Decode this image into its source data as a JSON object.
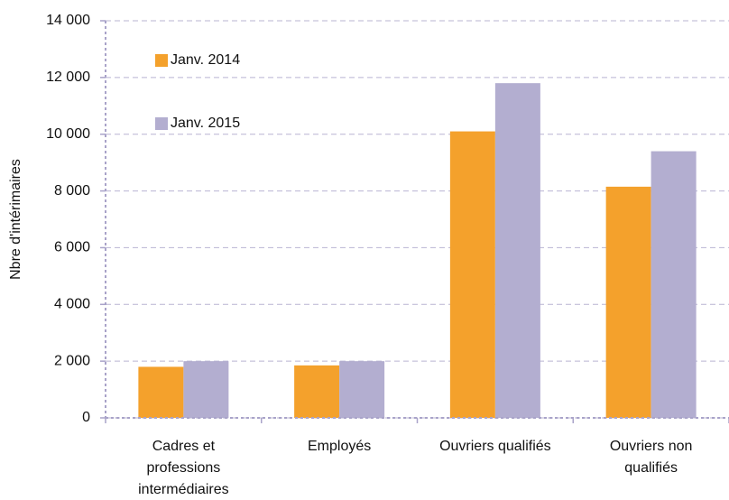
{
  "chart_data": {
    "type": "bar",
    "ylabel": "Nbre d'intérimaires",
    "categories": [
      "Cadres et professions intermédiaires",
      "Employés",
      "Ouvriers qualifiés",
      "Ouvriers non qualifiés"
    ],
    "series": [
      {
        "name": "Janv. 2014",
        "color": "#f4a12c",
        "values": [
          1800,
          1850,
          10100,
          8150
        ]
      },
      {
        "name": "Janv. 2015",
        "color": "#b3aed0",
        "values": [
          2000,
          2000,
          11800,
          9400
        ]
      }
    ],
    "ylim": [
      0,
      14000
    ],
    "yticks": [
      0,
      {
        "value": 2000,
        "label": "2 000"
      },
      {
        "value": 4000,
        "label": "4 000"
      },
      {
        "value": 6000,
        "label": "6 000"
      },
      {
        "value": 8000,
        "label": "8 000"
      },
      {
        "value": 10000,
        "label": "10 000"
      },
      {
        "value": 12000,
        "label": "12 000"
      },
      {
        "value": 14000,
        "label": "14 000"
      }
    ],
    "grid": true
  }
}
